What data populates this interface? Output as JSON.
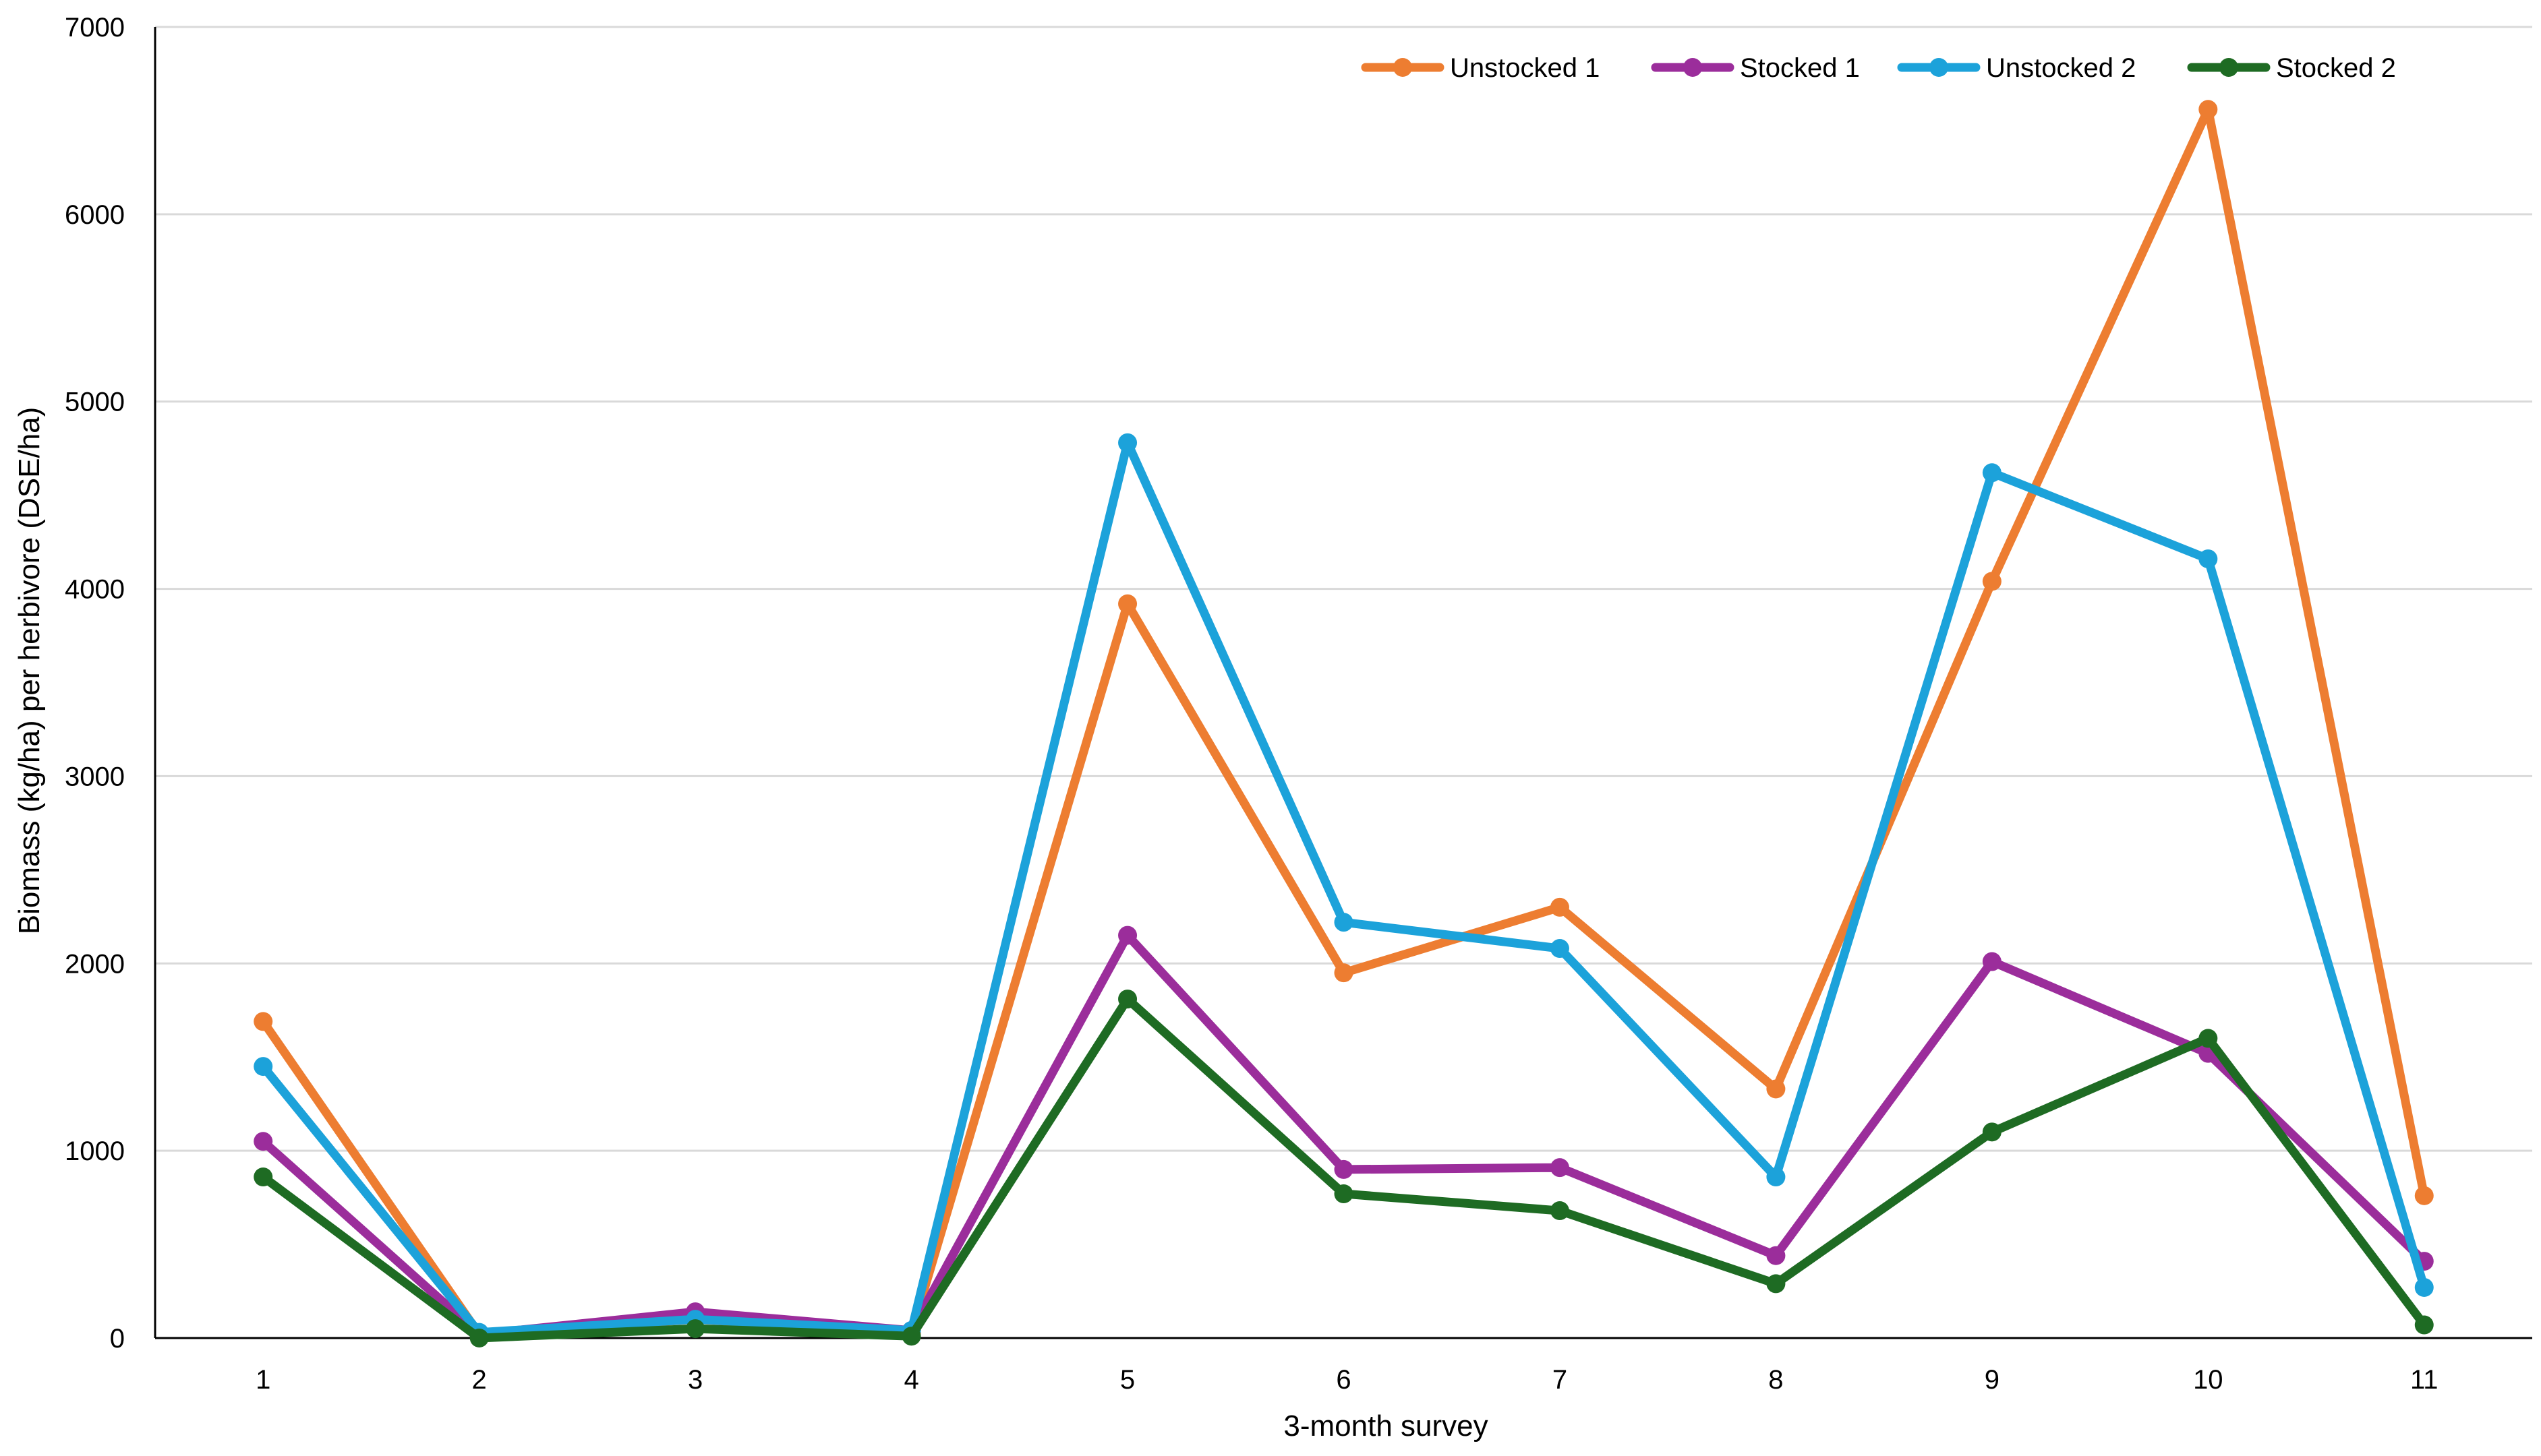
{
  "chart_data": {
    "type": "line",
    "title": "",
    "xlabel": "3-month survey",
    "ylabel": "Biomass (kg/ha) per herbivore (DSE/ha)",
    "categories": [
      "1",
      "2",
      "3",
      "4",
      "5",
      "6",
      "7",
      "8",
      "9",
      "10",
      "11"
    ],
    "ylim": [
      0,
      7000
    ],
    "yticks": [
      0,
      1000,
      2000,
      3000,
      4000,
      5000,
      6000,
      7000
    ],
    "grid": "horizontal",
    "legend_position": "top-right",
    "series": [
      {
        "name": "Unstocked 1",
        "color": "#ED7D31",
        "values": [
          1690,
          20,
          100,
          30,
          3920,
          1950,
          2300,
          1330,
          4040,
          6560,
          760
        ]
      },
      {
        "name": "Stocked 1",
        "color": "#9B2D9B",
        "values": [
          1050,
          20,
          140,
          40,
          2150,
          900,
          910,
          440,
          2010,
          1520,
          410
        ]
      },
      {
        "name": "Unstocked 2",
        "color": "#1CA2DA",
        "values": [
          1450,
          30,
          100,
          40,
          4780,
          2220,
          2080,
          860,
          4620,
          4160,
          270
        ]
      },
      {
        "name": "Stocked 2",
        "color": "#1E6B23",
        "values": [
          860,
          0,
          50,
          10,
          1810,
          770,
          680,
          290,
          1100,
          1600,
          70
        ]
      }
    ]
  }
}
